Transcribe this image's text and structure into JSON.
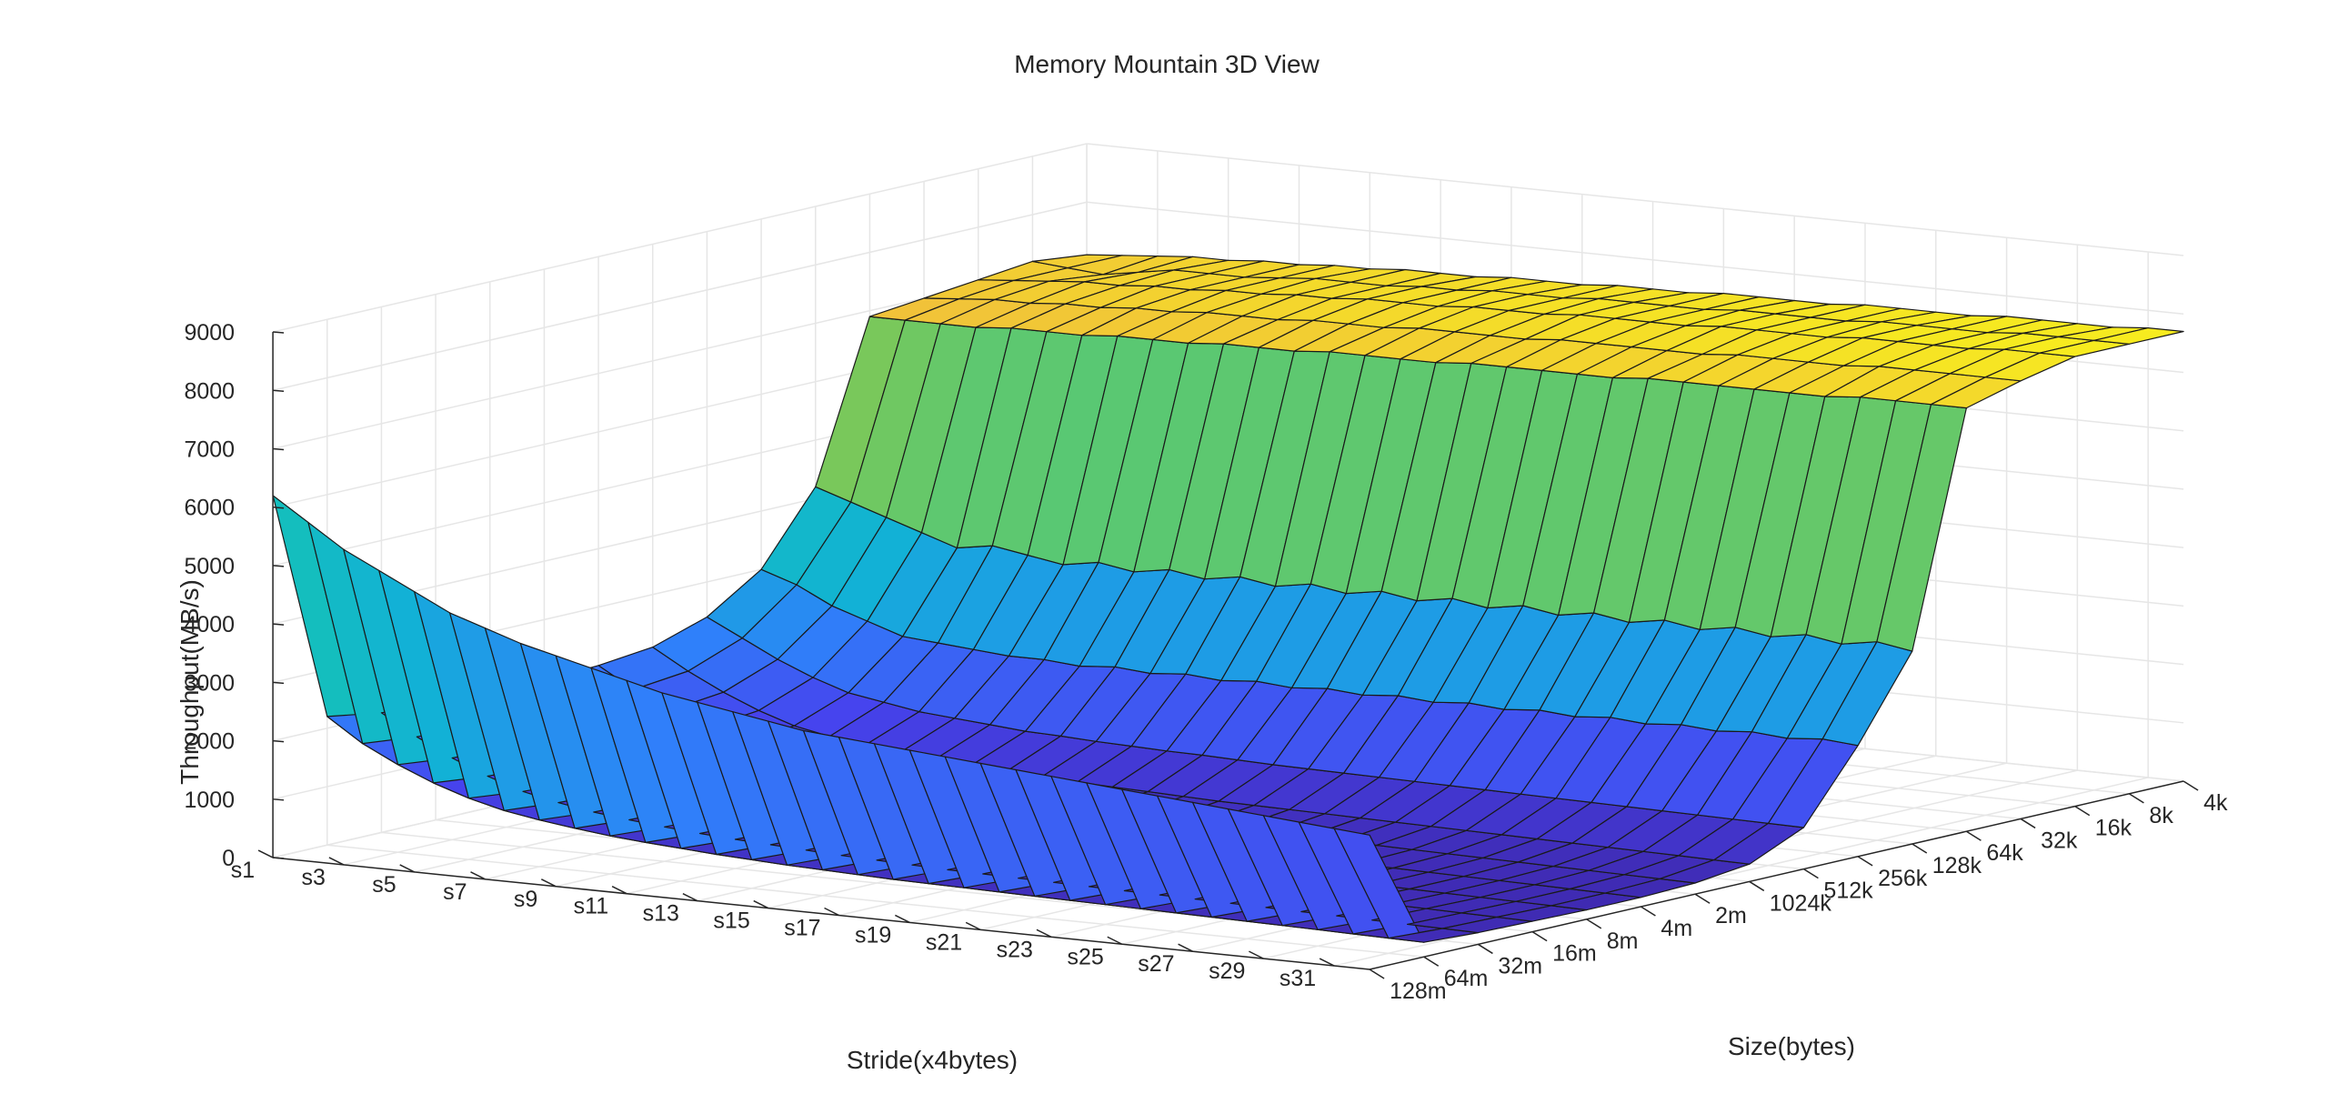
{
  "chart_data": {
    "type": "surface3d",
    "title": "Memory Mountain 3D View",
    "xlabel": "Stride(x4bytes)",
    "ylabel": "Size(bytes)",
    "zlabel": "Throughput(MB/s)",
    "zlim": [
      0,
      9000
    ],
    "z_ticks": [
      0,
      1000,
      2000,
      3000,
      4000,
      5000,
      6000,
      7000,
      8000,
      9000
    ],
    "grid": true,
    "colormap": "parula",
    "stride_ticks": [
      "s1",
      "s3",
      "s5",
      "s7",
      "s9",
      "s11",
      "s13",
      "s15",
      "s17",
      "s19",
      "s21",
      "s23",
      "s25",
      "s27",
      "s29",
      "s31"
    ],
    "size_ticks": [
      "128m",
      "64m",
      "32m",
      "16m",
      "8m",
      "4m",
      "2m",
      "1024k",
      "512k",
      "256k",
      "128k",
      "64k",
      "32k",
      "16k",
      "8k",
      "4k"
    ],
    "stride_index": [
      1,
      2,
      3,
      4,
      5,
      6,
      7,
      8,
      9,
      10,
      11,
      12,
      13,
      14,
      15,
      16,
      17,
      18,
      19,
      20,
      21,
      22,
      23,
      24,
      25,
      26,
      27,
      28,
      29,
      30,
      31,
      32
    ],
    "size_index": [
      1,
      2,
      3,
      4,
      5,
      6,
      7,
      8,
      9,
      10,
      11,
      12,
      13,
      14,
      15,
      16
    ],
    "throughput": [
      [
        6200,
        2200,
        2050,
        2000,
        1950,
        1950,
        2000,
        2100,
        2400,
        3000,
        4200,
        6900,
        7000,
        7100,
        7200,
        7100
      ],
      [
        5800,
        1800,
        1700,
        1650,
        1600,
        1600,
        1650,
        1750,
        2100,
        2800,
        4000,
        6900,
        7050,
        7150,
        7150,
        7150
      ],
      [
        5400,
        1500,
        1400,
        1350,
        1300,
        1300,
        1350,
        1450,
        1800,
        2500,
        3800,
        6900,
        7100,
        7200,
        7100,
        7200
      ],
      [
        5100,
        1250,
        1150,
        1100,
        1050,
        1050,
        1100,
        1200,
        1550,
        2300,
        3600,
        6900,
        7100,
        7250,
        7200,
        7250
      ],
      [
        4800,
        1050,
        950,
        900,
        850,
        850,
        900,
        1000,
        1350,
        2100,
        3400,
        6950,
        7150,
        7250,
        7300,
        7250
      ],
      [
        4500,
        900,
        820,
        780,
        740,
        740,
        780,
        880,
        1250,
        2050,
        3500,
        6950,
        7150,
        7300,
        7300,
        7300
      ],
      [
        4300,
        800,
        720,
        690,
        660,
        660,
        690,
        790,
        1150,
        2000,
        3400,
        6950,
        7200,
        7300,
        7300,
        7300
      ],
      [
        4100,
        720,
        650,
        620,
        600,
        600,
        630,
        730,
        1100,
        1950,
        3300,
        7000,
        7200,
        7350,
        7350,
        7350
      ],
      [
        3950,
        650,
        590,
        560,
        540,
        540,
        570,
        680,
        1050,
        1950,
        3400,
        7000,
        7250,
        7350,
        7400,
        7350
      ],
      [
        3800,
        600,
        540,
        510,
        490,
        490,
        520,
        630,
        1000,
        1900,
        3300,
        7000,
        7250,
        7400,
        7400,
        7400
      ],
      [
        3650,
        560,
        500,
        470,
        450,
        450,
        480,
        590,
        980,
        1950,
        3400,
        7050,
        7250,
        7400,
        7400,
        7400
      ],
      [
        3500,
        520,
        470,
        440,
        420,
        420,
        450,
        560,
        950,
        1900,
        3300,
        7050,
        7300,
        7450,
        7450,
        7400
      ],
      [
        3400,
        490,
        440,
        410,
        390,
        390,
        420,
        530,
        930,
        1950,
        3400,
        7050,
        7300,
        7450,
        7450,
        7450
      ],
      [
        3300,
        460,
        410,
        380,
        370,
        370,
        400,
        510,
        910,
        1900,
        3300,
        7100,
        7300,
        7450,
        7500,
        7450
      ],
      [
        3200,
        440,
        390,
        360,
        350,
        350,
        380,
        490,
        900,
        1950,
        3400,
        7100,
        7350,
        7500,
        7500,
        7450
      ],
      [
        3100,
        420,
        370,
        340,
        330,
        330,
        360,
        470,
        880,
        1900,
        3300,
        7100,
        7350,
        7500,
        7500,
        7500
      ],
      [
        3050,
        400,
        350,
        330,
        310,
        310,
        340,
        450,
        860,
        1950,
        3400,
        7100,
        7350,
        7500,
        7550,
        7500
      ],
      [
        3000,
        390,
        340,
        320,
        300,
        300,
        330,
        440,
        850,
        1900,
        3300,
        7150,
        7350,
        7550,
        7550,
        7500
      ],
      [
        2950,
        380,
        330,
        310,
        290,
        290,
        320,
        430,
        840,
        1950,
        3400,
        7150,
        7400,
        7550,
        7550,
        7550
      ],
      [
        2900,
        370,
        320,
        300,
        280,
        280,
        310,
        420,
        830,
        1900,
        3300,
        7150,
        7400,
        7550,
        7550,
        7550
      ],
      [
        2850,
        360,
        310,
        290,
        270,
        270,
        300,
        410,
        820,
        1950,
        3400,
        7150,
        7400,
        7550,
        7600,
        7550
      ],
      [
        2800,
        350,
        300,
        280,
        260,
        260,
        290,
        400,
        810,
        1900,
        3300,
        7150,
        7400,
        7600,
        7600,
        7550
      ],
      [
        2750,
        340,
        290,
        270,
        250,
        250,
        280,
        390,
        800,
        1950,
        3400,
        7200,
        7400,
        7600,
        7600,
        7600
      ],
      [
        2700,
        330,
        280,
        260,
        240,
        240,
        270,
        380,
        790,
        1900,
        3300,
        7200,
        7450,
        7600,
        7600,
        7600
      ],
      [
        2650,
        320,
        270,
        250,
        230,
        230,
        260,
        370,
        780,
        1950,
        3400,
        7200,
        7450,
        7600,
        7650,
        7600
      ],
      [
        2600,
        310,
        260,
        240,
        220,
        220,
        250,
        360,
        770,
        1900,
        3300,
        7200,
        7450,
        7650,
        7650,
        7600
      ],
      [
        2550,
        300,
        250,
        230,
        210,
        210,
        240,
        350,
        760,
        1950,
        3400,
        7200,
        7450,
        7650,
        7650,
        7650
      ],
      [
        2500,
        290,
        240,
        220,
        200,
        200,
        230,
        340,
        750,
        1900,
        3300,
        7200,
        7500,
        7650,
        7650,
        7650
      ],
      [
        2450,
        280,
        230,
        210,
        190,
        190,
        220,
        330,
        740,
        1950,
        3400,
        7250,
        7500,
        7650,
        7700,
        7650
      ],
      [
        2400,
        270,
        220,
        200,
        180,
        180,
        210,
        320,
        730,
        1900,
        3300,
        7250,
        7500,
        7700,
        7700,
        7650
      ],
      [
        2350,
        260,
        210,
        190,
        170,
        170,
        200,
        310,
        720,
        1950,
        3400,
        7250,
        7500,
        7700,
        7700,
        7700
      ],
      [
        2300,
        250,
        200,
        180,
        160,
        160,
        190,
        300,
        710,
        1900,
        3300,
        7250,
        7500,
        7700,
        7700,
        7700
      ]
    ]
  }
}
